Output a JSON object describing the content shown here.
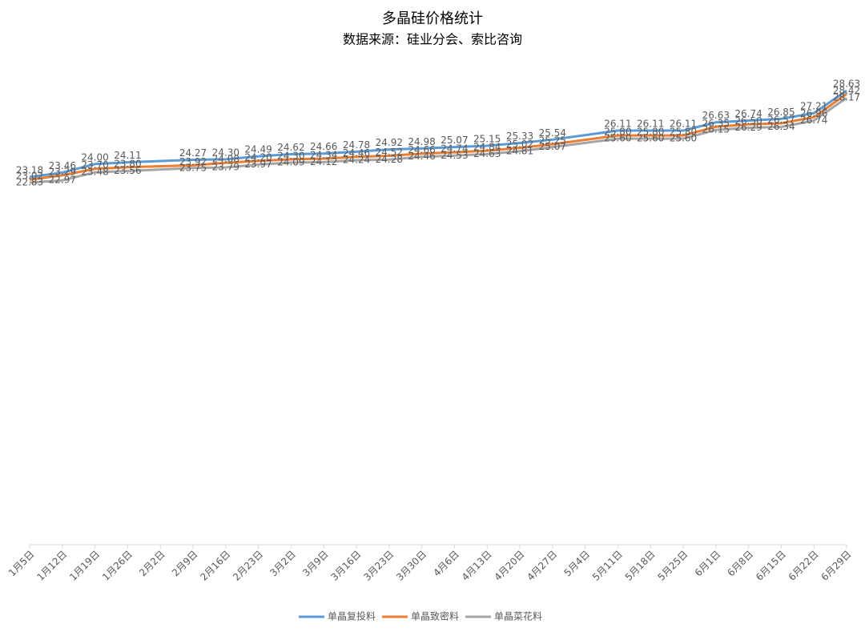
{
  "chart_data": {
    "type": "line",
    "title": "多晶硅价格统计",
    "subtitle": "数据来源：硅业分会、索比咨询",
    "categories": [
      "1月5日",
      "1月12日",
      "1月19日",
      "1月26日",
      "2月2日",
      "2月9日",
      "2月16日",
      "2月23日",
      "3月2日",
      "3月9日",
      "3月16日",
      "3月23日",
      "3月30日",
      "4月6日",
      "4月13日",
      "4月20日",
      "4月27日",
      "5月4日",
      "5月11日",
      "5月18日",
      "5月25日",
      "6月1日",
      "6月8日",
      "6月15日",
      "6月22日",
      "6月29日"
    ],
    "ylim": [
      0,
      30
    ],
    "connect_gaps": true,
    "legend": "bottom",
    "series": [
      {
        "name": "单晶复投料",
        "color": "#5b9bd5",
        "values": [
          23.18,
          23.46,
          24.0,
          24.11,
          null,
          24.27,
          24.3,
          24.49,
          24.62,
          24.66,
          24.78,
          24.92,
          24.98,
          25.07,
          25.15,
          25.33,
          25.54,
          null,
          26.11,
          26.11,
          26.11,
          26.63,
          26.74,
          26.85,
          27.21,
          28.63
        ],
        "value_labels": [
          "23.18",
          "23.46",
          "24.00",
          "24.11",
          null,
          "24.27",
          "24.30",
          "24.49",
          "24.62",
          "24.66",
          "24.78",
          "24.92",
          "24.98",
          "25.07",
          "25.15",
          "25.33",
          "25.54",
          null,
          "26.11",
          "26.11",
          "26.11",
          "26.63",
          "26.74",
          "26.85",
          "27.21",
          "28.63"
        ]
      },
      {
        "name": "单晶致密料",
        "color": "#ed7d31",
        "values": [
          23.02,
          23.29,
          23.7,
          23.8,
          null,
          23.92,
          24.08,
          24.2,
          24.3,
          24.34,
          24.46,
          24.52,
          24.66,
          24.74,
          24.84,
          25.02,
          25.25,
          null,
          25.8,
          25.8,
          25.8,
          26.35,
          26.5,
          26.57,
          26.96,
          28.42
        ],
        "value_labels": [
          "23.02",
          "23.29",
          "23.70",
          "23.80",
          null,
          "23.92",
          "24.08",
          "24.20",
          "24.30",
          "24.34",
          "24.46",
          "24.52",
          "24.66",
          "24.74",
          "24.84",
          "25.02",
          "25.25",
          null,
          "25.80",
          "25.80",
          "25.80",
          "26.35",
          "26.50",
          "26.57",
          "26.96",
          "28.42"
        ]
      },
      {
        "name": "单晶菜花料",
        "color": "#a5a5a5",
        "values": [
          22.83,
          22.97,
          23.48,
          23.56,
          null,
          23.75,
          23.79,
          23.97,
          24.09,
          24.12,
          24.24,
          24.28,
          24.46,
          24.53,
          24.63,
          24.81,
          25.07,
          null,
          25.6,
          25.6,
          25.6,
          26.15,
          26.29,
          26.34,
          26.74,
          28.17
        ],
        "value_labels": [
          "22.83",
          "22.97",
          "23.48",
          "23.56",
          null,
          "23.75",
          "23.79",
          "23.97",
          "24.09",
          "24.12",
          "24.24",
          "24.28",
          "24.46",
          "24.53",
          "24.63",
          "24.81",
          "25.07",
          null,
          "25.60",
          "25.60",
          "25.60",
          "26.15",
          "26.29",
          "26.34",
          "26.74",
          "28.17"
        ]
      }
    ]
  }
}
